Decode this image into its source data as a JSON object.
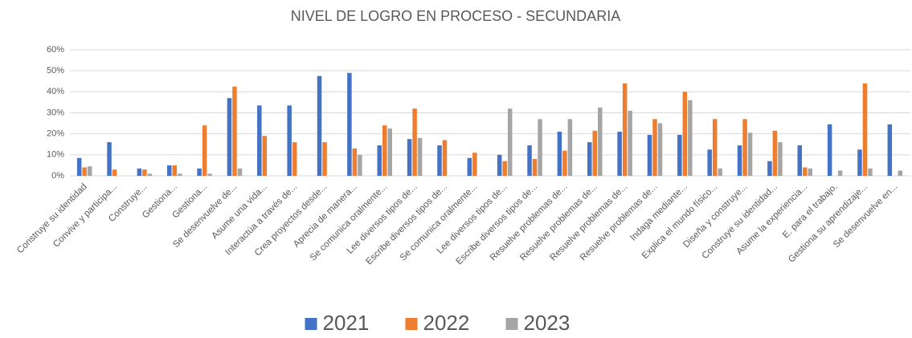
{
  "chart_data": {
    "type": "bar",
    "title": "NIVEL DE LOGRO EN PROCESO - SECUNDARIA",
    "categories": [
      "Construye su identidad",
      "Convive y participa...",
      "Construye...",
      "Gestiona...",
      "Gestiona...",
      "Se desenvuelve de...",
      "Asume una vida...",
      "Interactúa a través de...",
      "Crea proyectos desde...",
      "Aprecia de manera...",
      "Se comunica oralmente...",
      "Lee diversos tipos de...",
      "Escribe diversos tipos de...",
      "Se comunica oralmente...",
      "Lee diversos tipos de...",
      "Escribe diversos tipos de...",
      "Resuelve problemas de...",
      "Resuelve problemas de...",
      "Resuelve problemas de...",
      "Resuelve problemas de...",
      "Indaga mediante...",
      "Explica el mundo físico...",
      "Diseña y construye...",
      "Construye su identidad...",
      "Asume la experiencia...",
      "E. para el trabajo.",
      "Gestiona su aprendizaje...",
      "Se desenvuelve en..."
    ],
    "series": [
      {
        "name": "2021",
        "color": "#4472c4",
        "values": [
          8.5,
          16,
          3.5,
          5,
          3.5,
          37,
          33.5,
          33.5,
          47.5,
          49,
          14.5,
          17.5,
          14.5,
          8.5,
          10,
          14.5,
          21,
          16,
          21,
          19.5,
          19.5,
          12.5,
          14.5,
          7,
          14.5,
          24.5,
          12.5,
          24.5
        ]
      },
      {
        "name": "2022",
        "color": "#ed7d31",
        "values": [
          4,
          3,
          3,
          5,
          24,
          42.5,
          19,
          16,
          16,
          13,
          24,
          32,
          17,
          11,
          7,
          8,
          12,
          21.5,
          44,
          27,
          40,
          27,
          27,
          21.5,
          4,
          0,
          44,
          0
        ]
      },
      {
        "name": "2023",
        "color": "#a5a5a5",
        "values": [
          4.5,
          0,
          1,
          1,
          1,
          3.5,
          0,
          0,
          0,
          10,
          22.5,
          18,
          0,
          0,
          32,
          27,
          27,
          32.5,
          31,
          25,
          36,
          3.5,
          20.5,
          16,
          3.5,
          2.5,
          3.5,
          2.5
        ]
      }
    ],
    "ylim": [
      0,
      60
    ],
    "yticks": [
      {
        "value": 0,
        "label": "0%"
      },
      {
        "value": 10,
        "label": "10%"
      },
      {
        "value": 20,
        "label": "20%"
      },
      {
        "value": 30,
        "label": "30%"
      },
      {
        "value": 40,
        "label": "40%"
      },
      {
        "value": 50,
        "label": "50%"
      },
      {
        "value": 60,
        "label": "60%"
      }
    ],
    "grid": true,
    "legend": "bottom"
  }
}
